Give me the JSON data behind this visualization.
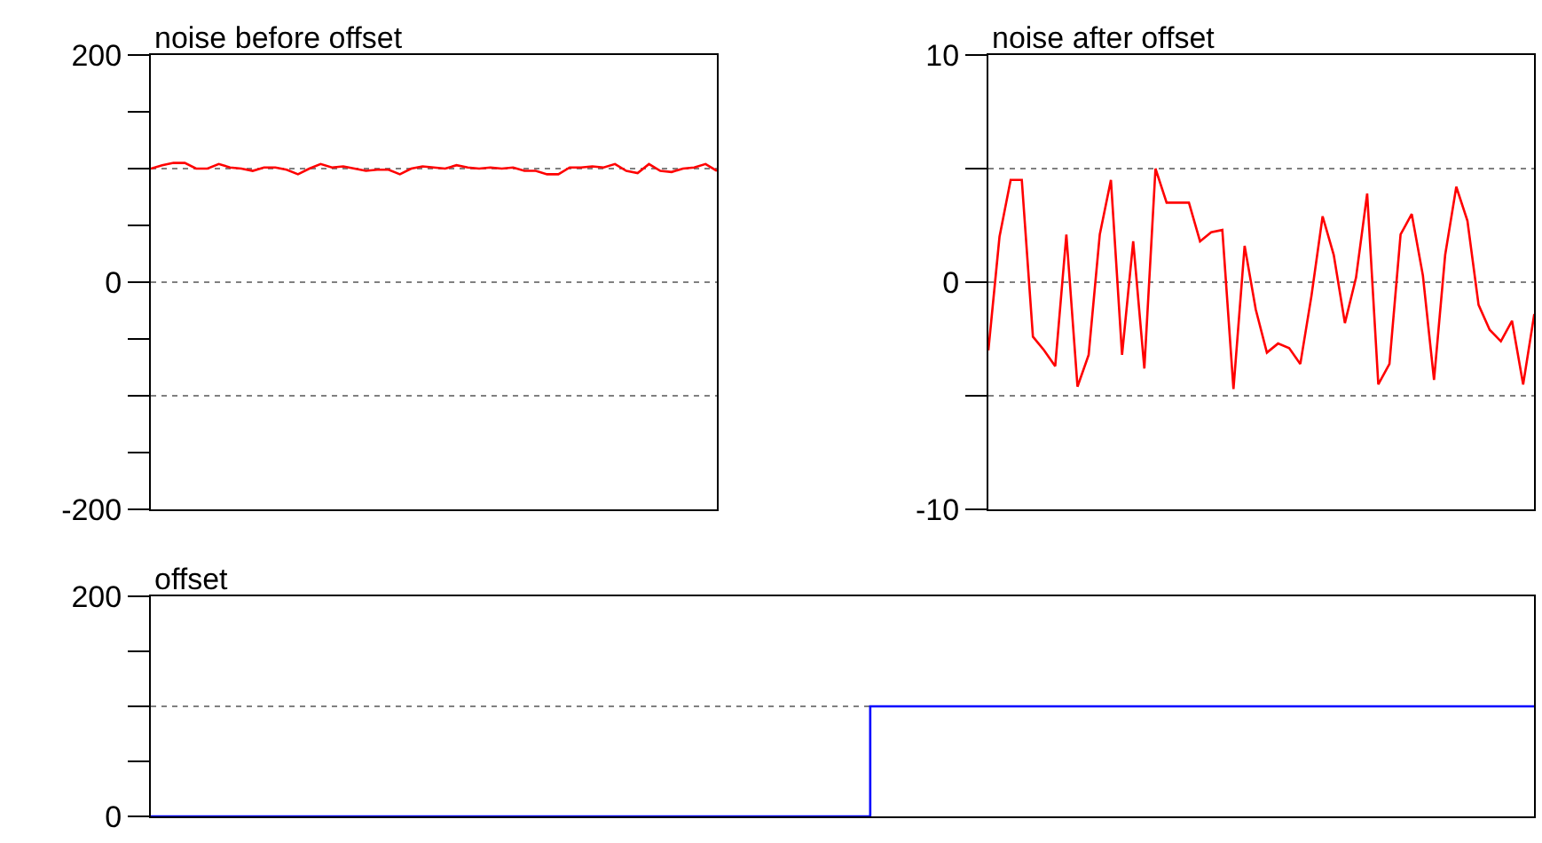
{
  "chart_data": [
    {
      "type": "line",
      "title": "noise before offset",
      "categories": [
        null,
        null,
        null,
        null,
        null,
        null,
        null,
        null,
        null,
        null,
        null,
        null,
        null,
        null,
        null,
        null,
        null,
        null,
        null,
        null,
        null,
        null,
        null,
        null,
        null,
        null,
        null,
        null,
        null,
        null,
        null,
        null,
        null,
        null,
        null,
        null,
        null,
        null,
        null,
        null,
        null,
        null,
        null,
        null,
        null,
        null,
        null,
        null,
        null,
        null,
        null
      ],
      "series": [
        {
          "color": "#ff0000",
          "values": [
            100,
            103,
            105,
            105,
            100,
            100,
            104,
            101,
            100,
            98,
            101,
            101,
            99,
            95,
            100,
            104,
            101,
            102,
            100,
            98,
            99,
            99,
            95,
            100,
            102,
            101,
            100,
            103,
            101,
            100,
            101,
            100,
            101,
            98,
            98,
            95,
            95,
            101,
            101,
            102,
            101,
            104,
            98,
            96,
            104,
            98,
            97,
            100,
            101,
            104,
            98
          ]
        }
      ],
      "ylim": [
        -200,
        200
      ],
      "yticks": [
        200,
        {
          "value": 150,
          "label": null
        },
        {
          "value": 100,
          "label": null
        },
        {
          "value": 50,
          "label": null
        },
        0,
        {
          "value": -50,
          "label": null
        },
        {
          "value": -100,
          "label": null
        },
        {
          "value": -150,
          "label": null
        },
        -200
      ],
      "ref_lines": [
        {
          "axis": "y",
          "value": 100,
          "color": "#808080",
          "line_style": "dotted"
        },
        {
          "axis": "y",
          "value": 0,
          "color": "#808080",
          "line_style": "dotted"
        },
        {
          "axis": "y",
          "value": -100,
          "color": "#808080",
          "line_style": "dotted"
        }
      ],
      "tick_labels": "y"
    },
    {
      "type": "line",
      "title": "noise after offset",
      "categories": [
        null,
        null,
        null,
        null,
        null,
        null,
        null,
        null,
        null,
        null,
        null,
        null,
        null,
        null,
        null,
        null,
        null,
        null,
        null,
        null,
        null,
        null,
        null,
        null,
        null,
        null,
        null,
        null,
        null,
        null,
        null,
        null,
        null,
        null,
        null,
        null,
        null,
        null,
        null,
        null,
        null,
        null,
        null,
        null,
        null,
        null,
        null,
        null,
        null,
        null
      ],
      "series": [
        {
          "color": "#ff0000",
          "values": [
            -3.0,
            2.0,
            4.5,
            4.5,
            -2.4,
            -3.0,
            -3.7,
            2.1,
            -4.6,
            -3.2,
            2.1,
            4.5,
            -3.2,
            1.8,
            -3.8,
            5.0,
            3.5,
            3.5,
            3.5,
            1.8,
            2.2,
            2.3,
            -4.7,
            1.6,
            -1.2,
            -3.1,
            -2.7,
            -2.9,
            -3.6,
            -0.6,
            2.9,
            1.2,
            -1.8,
            0.2,
            3.9,
            -4.5,
            -3.6,
            2.1,
            3.0,
            0.3,
            -4.3,
            1.2,
            4.2,
            2.7,
            -1.0,
            -2.1,
            -2.6,
            -1.7,
            -4.5,
            -1.4
          ]
        }
      ],
      "ylim": [
        -10,
        10
      ],
      "yticks": [
        10,
        {
          "value": 5,
          "label": null
        },
        0,
        {
          "value": -5,
          "label": null
        },
        -10
      ],
      "ref_lines": [
        {
          "axis": "y",
          "value": 5,
          "color": "#808080",
          "line_style": "dotted"
        },
        {
          "axis": "y",
          "value": 0,
          "color": "#808080",
          "line_style": "dotted"
        },
        {
          "axis": "y",
          "value": -5,
          "color": "#808080",
          "line_style": "dotted"
        }
      ],
      "tick_labels": "y"
    },
    {
      "type": "step",
      "title": "offset",
      "categories": [
        null,
        null,
        null,
        null,
        null,
        null,
        null,
        null,
        null,
        null,
        null,
        null,
        null,
        null,
        null,
        null,
        null,
        null,
        null,
        null,
        null,
        null,
        null,
        null,
        null,
        null,
        null,
        null,
        null,
        null,
        null,
        null,
        null,
        null,
        null,
        null,
        null,
        null,
        null,
        null,
        null,
        null,
        null,
        null,
        null,
        null,
        null,
        null,
        null,
        null,
        null
      ],
      "series": [
        {
          "color": "#0000ff",
          "values": [
            0,
            0,
            0,
            0,
            0,
            0,
            0,
            0,
            0,
            0,
            0,
            0,
            0,
            0,
            0,
            0,
            0,
            0,
            0,
            0,
            0,
            0,
            0,
            0,
            0,
            0,
            100,
            100,
            100,
            100,
            100,
            100,
            100,
            100,
            100,
            100,
            100,
            100,
            100,
            100,
            100,
            100,
            100,
            100,
            100,
            100,
            100,
            100,
            100,
            100,
            100
          ]
        }
      ],
      "ylim": [
        0,
        200
      ],
      "yticks": [
        200,
        {
          "value": 150,
          "label": null
        },
        {
          "value": 100,
          "label": null
        },
        {
          "value": 50,
          "label": null
        },
        0
      ],
      "ref_lines": [
        {
          "axis": "y",
          "value": 100,
          "color": "#808080",
          "line_style": "dotted"
        }
      ],
      "tick_labels": "y"
    }
  ]
}
